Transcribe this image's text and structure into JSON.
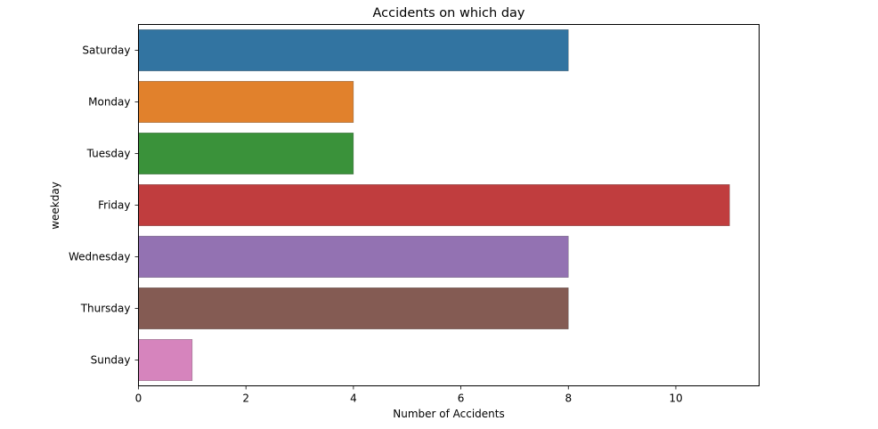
{
  "chart_data": {
    "type": "bar",
    "orientation": "horizontal",
    "title": "Accidents on which day",
    "xlabel": "Number of Accidents",
    "ylabel": "weekday",
    "categories": [
      "Saturday",
      "Monday",
      "Tuesday",
      "Friday",
      "Wednesday",
      "Thursday",
      "Sunday"
    ],
    "values": [
      8,
      4,
      4,
      11,
      8,
      8,
      1
    ],
    "colors": [
      "#3274a1",
      "#e1812c",
      "#3a923a",
      "#c03d3e",
      "#9372b2",
      "#845b53",
      "#d684bd"
    ],
    "xlim": [
      0,
      11.55
    ],
    "xticks": [
      0,
      2,
      4,
      6,
      8,
      10
    ],
    "grid": false,
    "legend": "none"
  }
}
